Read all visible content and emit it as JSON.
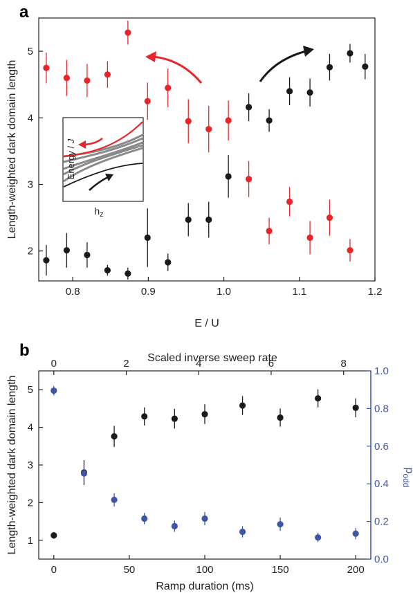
{
  "panel_labels": [
    "a",
    "b"
  ],
  "chart_data": [
    {
      "type": "scatter",
      "panel": "a",
      "xlabel": "E / U",
      "ylabel": "Length-weighted dark domain length",
      "xlim": [
        0.755,
        1.2
      ],
      "ylim": [
        1.55,
        5.5
      ],
      "xticks": [
        "0.8",
        "0.9",
        "1.0",
        "1.1",
        "1.2"
      ],
      "xtick_values": [
        0.8,
        0.9,
        1.0,
        1.1,
        1.2
      ],
      "yticks": [
        "2",
        "3",
        "4",
        "5"
      ],
      "ytick_values": [
        2,
        3,
        4,
        5
      ],
      "colors": {
        "black": "#1a1a1a",
        "red": "#e8262a"
      },
      "series": [
        {
          "color": "#1a1a1a",
          "x": [
            0.765,
            0.792,
            0.819,
            0.846,
            0.873,
            0.899,
            0.926,
            0.953,
            0.98,
            1.006,
            1.033,
            1.06,
            1.087,
            1.114,
            1.14,
            1.167,
            1.187
          ],
          "y": [
            1.86,
            2.01,
            1.94,
            1.71,
            1.66,
            2.2,
            1.83,
            2.47,
            2.47,
            3.12,
            4.16,
            3.96,
            4.4,
            4.38,
            4.76,
            4.97,
            4.77
          ],
          "err": [
            0.23,
            0.26,
            0.19,
            0.08,
            0.09,
            0.44,
            0.13,
            0.25,
            0.27,
            0.32,
            0.21,
            0.17,
            0.21,
            0.21,
            0.2,
            0.14,
            0.19
          ]
        },
        {
          "color": "#e8262a",
          "x": [
            0.765,
            0.792,
            0.819,
            0.846,
            0.873,
            0.899,
            0.926,
            0.953,
            0.98,
            1.006,
            1.033,
            1.06,
            1.087,
            1.114,
            1.14,
            1.167
          ],
          "y": [
            4.75,
            4.6,
            4.56,
            4.65,
            5.28,
            4.25,
            4.45,
            3.95,
            3.83,
            3.96,
            3.08,
            2.3,
            2.74,
            2.2,
            2.5,
            2.01
          ],
          "err": [
            0.23,
            0.27,
            0.25,
            0.2,
            0.18,
            0.28,
            0.29,
            0.33,
            0.35,
            0.3,
            0.27,
            0.2,
            0.22,
            0.25,
            0.27,
            0.17
          ]
        }
      ],
      "annotations": [
        "red arrow pointing left (decreasing E/U)",
        "black arrow pointing right (increasing E/U)"
      ],
      "inset": {
        "xlabel": "h",
        "xlabel_subscript": "z",
        "ylabel": "Energy / ",
        "ylabel_italic": "J",
        "lines": {
          "red": "#e8262a",
          "gray": "#8a8a8a",
          "black": "#1a1a1a"
        }
      }
    },
    {
      "type": "scatter",
      "panel": "b",
      "xlabel": "Ramp duration (ms)",
      "x2label": "Scaled inverse sweep rate",
      "ylabel": "Length-weighted dark domain length",
      "y2label": "p",
      "y2label_sub": "odd",
      "xlim": [
        -10,
        210
      ],
      "ylim": [
        0.5,
        5.5
      ],
      "y2lim": [
        0,
        1
      ],
      "xticks": [
        "0",
        "50",
        "100",
        "150",
        "200"
      ],
      "xtick_values": [
        0,
        50,
        100,
        150,
        200
      ],
      "x2ticks": [
        "0",
        "2",
        "4",
        "6",
        "8"
      ],
      "x2tick_values": [
        0,
        2,
        4,
        6,
        8
      ],
      "x2_per_x": 0.04167,
      "yticks": [
        "1",
        "2",
        "3",
        "4",
        "5"
      ],
      "ytick_values": [
        1,
        2,
        3,
        4,
        5
      ],
      "y2ticks": [
        "0.0",
        "0.2",
        "0.4",
        "0.6",
        "0.8",
        "1.0"
      ],
      "y2tick_values": [
        0.0,
        0.2,
        0.4,
        0.6,
        0.8,
        1.0
      ],
      "colors": {
        "black": "#1a1a1a",
        "blue": "#3e56a6"
      },
      "series": [
        {
          "color": "#1a1a1a",
          "axis": "left",
          "x": [
            0,
            20,
            40,
            60,
            80,
            100,
            125,
            150,
            175,
            200
          ],
          "y": [
            1.13,
            2.8,
            3.76,
            4.29,
            4.23,
            4.35,
            4.58,
            4.26,
            4.77,
            4.52
          ],
          "err": [
            0.09,
            0.33,
            0.28,
            0.24,
            0.26,
            0.26,
            0.25,
            0.24,
            0.24,
            0.25
          ]
        },
        {
          "color": "#3e56a6",
          "axis": "right",
          "x": [
            0,
            20,
            40,
            60,
            80,
            100,
            125,
            150,
            175,
            200
          ],
          "y": [
            0.895,
            0.455,
            0.315,
            0.215,
            0.175,
            0.215,
            0.145,
            0.185,
            0.115,
            0.135
          ],
          "err": [
            0.025,
            0.045,
            0.035,
            0.03,
            0.03,
            0.035,
            0.03,
            0.035,
            0.025,
            0.03
          ]
        }
      ]
    }
  ]
}
